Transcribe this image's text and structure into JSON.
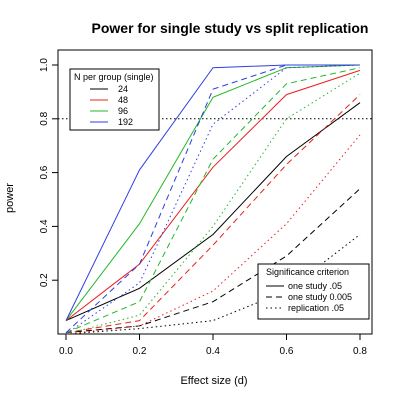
{
  "chart_data": {
    "type": "line",
    "title": "Power for single study vs split replication",
    "xlabel": "Effect size (d)",
    "ylabel": "power",
    "x": [
      0.0,
      0.2,
      0.4,
      0.6,
      0.8
    ],
    "xlim": [
      0.0,
      0.8
    ],
    "ylim": [
      0.0,
      1.0
    ],
    "x_ticks": [
      "0.0",
      "0.2",
      "0.4",
      "0.6",
      "0.8"
    ],
    "y_ticks": [
      "0.2",
      "0.4",
      "0.6",
      "0.8",
      "1.0"
    ],
    "reference_line_y": 0.8,
    "legend_n": {
      "title": "N per group (single)",
      "placement": "top-left",
      "entries": [
        {
          "label": "24",
          "color": "#000000"
        },
        {
          "label": "48",
          "color": "#e8211d"
        },
        {
          "label": "96",
          "color": "#22b826"
        },
        {
          "label": "192",
          "color": "#2f3fe0"
        }
      ]
    },
    "legend_criterion": {
      "title": "Significance criterion",
      "placement": "bottom-right",
      "entries": [
        {
          "label": "one study .05",
          "style": "solid"
        },
        {
          "label": "one study 0.005",
          "style": "dashed"
        },
        {
          "label": "replication .05",
          "style": "dotted"
        }
      ]
    },
    "series": [
      {
        "group": "24",
        "criterion": "one study .05",
        "color": "#000000",
        "style": "solid",
        "values": [
          0.05,
          0.17,
          0.37,
          0.66,
          0.86
        ]
      },
      {
        "group": "24",
        "criterion": "one study 0.005",
        "color": "#000000",
        "style": "dashed",
        "values": [
          0.005,
          0.03,
          0.12,
          0.29,
          0.54
        ]
      },
      {
        "group": "24",
        "criterion": "replication .05",
        "color": "#000000",
        "style": "dotted",
        "values": [
          0.0,
          0.02,
          0.05,
          0.16,
          0.37
        ]
      },
      {
        "group": "48",
        "criterion": "one study .05",
        "color": "#e8211d",
        "style": "solid",
        "values": [
          0.05,
          0.26,
          0.62,
          0.89,
          0.98
        ]
      },
      {
        "group": "48",
        "criterion": "one study 0.005",
        "color": "#e8211d",
        "style": "dashed",
        "values": [
          0.005,
          0.05,
          0.33,
          0.63,
          0.89
        ]
      },
      {
        "group": "48",
        "criterion": "replication .05",
        "color": "#e8211d",
        "style": "dotted",
        "values": [
          0.0,
          0.03,
          0.16,
          0.41,
          0.74
        ]
      },
      {
        "group": "96",
        "criterion": "one study .05",
        "color": "#22b826",
        "style": "solid",
        "values": [
          0.05,
          0.41,
          0.88,
          0.99,
          1.0
        ]
      },
      {
        "group": "96",
        "criterion": "one study 0.005",
        "color": "#22b826",
        "style": "dashed",
        "values": [
          0.005,
          0.12,
          0.65,
          0.93,
          0.99
        ]
      },
      {
        "group": "96",
        "criterion": "replication .05",
        "color": "#22b826",
        "style": "dotted",
        "values": [
          0.0,
          0.07,
          0.4,
          0.8,
          0.97
        ]
      },
      {
        "group": "192",
        "criterion": "one study .05",
        "color": "#2f3fe0",
        "style": "solid",
        "values": [
          0.05,
          0.61,
          0.99,
          1.0,
          1.0
        ]
      },
      {
        "group": "192",
        "criterion": "one study 0.005",
        "color": "#2f3fe0",
        "style": "dashed",
        "values": [
          0.005,
          0.26,
          0.91,
          1.0,
          1.0
        ]
      },
      {
        "group": "192",
        "criterion": "replication .05",
        "color": "#2f3fe0",
        "style": "dotted",
        "values": [
          0.0,
          0.19,
          0.78,
          0.99,
          1.0
        ]
      }
    ]
  }
}
